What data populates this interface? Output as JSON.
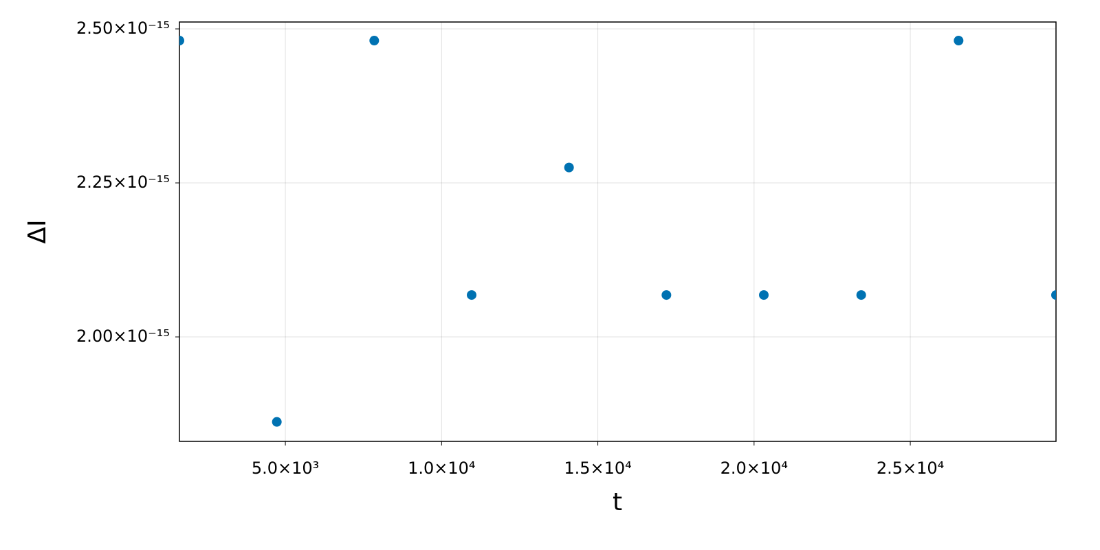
{
  "chart_data": {
    "type": "scatter",
    "x_label": "t",
    "y_label": "ΔI",
    "x": [
      1610,
      4727,
      7844,
      10961,
      14078,
      17195,
      20312,
      23429,
      26546,
      29663
    ],
    "series": [
      {
        "color": "#0072b2",
        "values": [
          2.481e-15,
          1.862e-15,
          2.481e-15,
          2.068e-15,
          2.275e-15,
          2.068e-15,
          2.068e-15,
          2.068e-15,
          2.481e-15,
          2.068e-15
        ]
      }
    ],
    "xlim": [
      1610,
      29663
    ],
    "ylim": [
      1.8304e-15,
      2.5112e-15
    ],
    "xticks": [
      {
        "value": 5000,
        "label": "5.0×10³"
      },
      {
        "value": 10000,
        "label": "1.0×10⁴"
      },
      {
        "value": 15000,
        "label": "1.5×10⁴"
      },
      {
        "value": 20000,
        "label": "2.0×10⁴"
      },
      {
        "value": 25000,
        "label": "2.5×10⁴"
      }
    ],
    "yticks": [
      {
        "value": 2e-15,
        "label": "2.00×10⁻¹⁵"
      },
      {
        "value": 2.25e-15,
        "label": "2.25×10⁻¹⁵"
      },
      {
        "value": 2.5e-15,
        "label": "2.50×10⁻¹⁵"
      }
    ],
    "grid": true
  }
}
